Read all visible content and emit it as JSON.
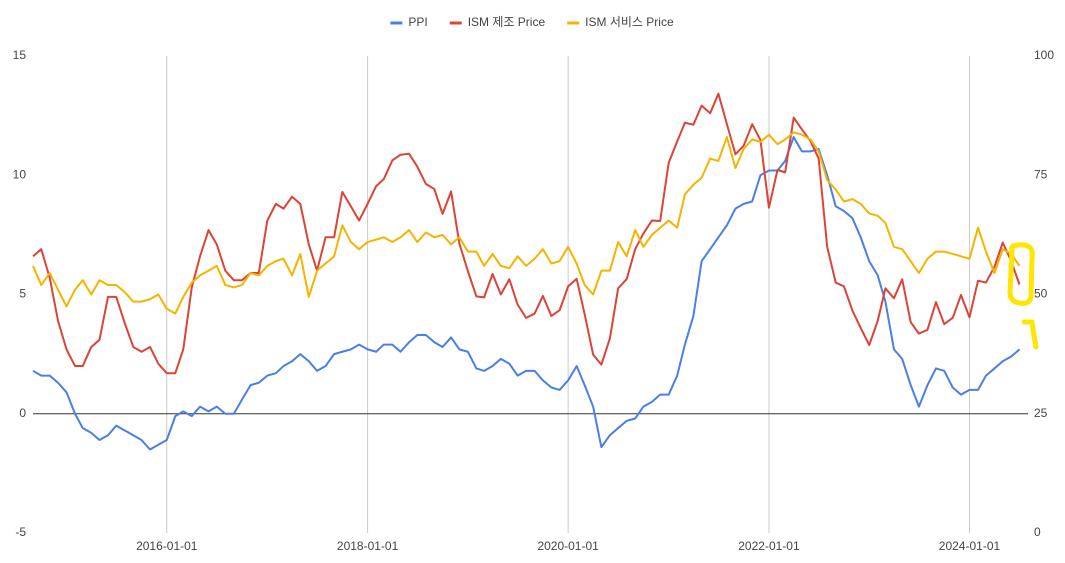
{
  "chart_data": {
    "type": "line",
    "x": [
      "2014-09-01",
      "2014-10-01",
      "2014-11-01",
      "2014-12-01",
      "2015-01-01",
      "2015-02-01",
      "2015-03-01",
      "2015-04-01",
      "2015-05-01",
      "2015-06-01",
      "2015-07-01",
      "2015-08-01",
      "2015-09-01",
      "2015-10-01",
      "2015-11-01",
      "2015-12-01",
      "2016-01-01",
      "2016-02-01",
      "2016-03-01",
      "2016-04-01",
      "2016-05-01",
      "2016-06-01",
      "2016-07-01",
      "2016-08-01",
      "2016-09-01",
      "2016-10-01",
      "2016-11-01",
      "2016-12-01",
      "2017-01-01",
      "2017-02-01",
      "2017-03-01",
      "2017-04-01",
      "2017-05-01",
      "2017-06-01",
      "2017-07-01",
      "2017-08-01",
      "2017-09-01",
      "2017-10-01",
      "2017-11-01",
      "2017-12-01",
      "2018-01-01",
      "2018-02-01",
      "2018-03-01",
      "2018-04-01",
      "2018-05-01",
      "2018-06-01",
      "2018-07-01",
      "2018-08-01",
      "2018-09-01",
      "2018-10-01",
      "2018-11-01",
      "2018-12-01",
      "2019-01-01",
      "2019-02-01",
      "2019-03-01",
      "2019-04-01",
      "2019-05-01",
      "2019-06-01",
      "2019-07-01",
      "2019-08-01",
      "2019-09-01",
      "2019-10-01",
      "2019-11-01",
      "2019-12-01",
      "2020-01-01",
      "2020-02-01",
      "2020-03-01",
      "2020-04-01",
      "2020-05-01",
      "2020-06-01",
      "2020-07-01",
      "2020-08-01",
      "2020-09-01",
      "2020-10-01",
      "2020-11-01",
      "2020-12-01",
      "2021-01-01",
      "2021-02-01",
      "2021-03-01",
      "2021-04-01",
      "2021-05-01",
      "2021-06-01",
      "2021-07-01",
      "2021-08-01",
      "2021-09-01",
      "2021-10-01",
      "2021-11-01",
      "2021-12-01",
      "2022-01-01",
      "2022-02-01",
      "2022-03-01",
      "2022-04-01",
      "2022-05-01",
      "2022-06-01",
      "2022-07-01",
      "2022-08-01",
      "2022-09-01",
      "2022-10-01",
      "2022-11-01",
      "2022-12-01",
      "2023-01-01",
      "2023-02-01",
      "2023-03-01",
      "2023-04-01",
      "2023-05-01",
      "2023-06-01",
      "2023-07-01",
      "2023-08-01",
      "2023-09-01",
      "2023-10-01",
      "2023-11-01",
      "2023-12-01",
      "2024-01-01",
      "2024-02-01",
      "2024-03-01",
      "2024-04-01",
      "2024-05-01",
      "2024-06-01",
      "2024-07-01"
    ],
    "series": [
      {
        "name": "PPI",
        "color": "#4a7fe6",
        "values": [
          1.8,
          1.6,
          1.6,
          1.3,
          0.9,
          0.0,
          -0.6,
          -0.8,
          -1.1,
          -0.9,
          -0.5,
          -0.7,
          -0.9,
          -1.1,
          -1.5,
          -1.3,
          -1.1,
          -0.1,
          0.1,
          -0.1,
          0.3,
          0.1,
          0.3,
          0.0,
          0.0,
          0.6,
          1.2,
          1.3,
          1.6,
          1.7,
          2.0,
          2.2,
          2.5,
          2.2,
          1.8,
          2.0,
          2.5,
          2.6,
          2.7,
          2.9,
          2.7,
          2.6,
          2.9,
          2.9,
          2.6,
          3.0,
          3.3,
          3.3,
          3.0,
          2.8,
          3.2,
          2.7,
          2.6,
          1.9,
          1.8,
          2.0,
          2.3,
          2.1,
          1.6,
          1.8,
          1.8,
          1.4,
          1.1,
          1.0,
          1.4,
          2.0,
          1.2,
          0.3,
          -1.4,
          -0.9,
          -0.6,
          -0.3,
          -0.2,
          0.3,
          0.5,
          0.8,
          0.8,
          1.6,
          2.9,
          4.1,
          6.4,
          6.9,
          7.4,
          7.9,
          8.6,
          8.8,
          8.9,
          10.0,
          10.2,
          10.2,
          10.6,
          11.6,
          11.0,
          11.0,
          11.1,
          10.0,
          8.7,
          8.5,
          8.2,
          7.4,
          6.4,
          5.8,
          4.7,
          2.7,
          2.3,
          1.2,
          0.3,
          1.2,
          1.9,
          1.8,
          1.1,
          0.8,
          1.0,
          1.0,
          1.6,
          1.9,
          2.2,
          2.4,
          2.7
        ]
      },
      {
        "name": "ISM 제조 Price",
        "color": "#db4437",
        "axis": "y2",
        "values": [
          58.0,
          59.5,
          53.5,
          44.5,
          38.5,
          35,
          35,
          39,
          40.5,
          49.5,
          49.5,
          44,
          39,
          38,
          39,
          35.5,
          33.5,
          33.5,
          38.5,
          51.5,
          58,
          63.5,
          60.5,
          55,
          53,
          53,
          54.5,
          54.5,
          65.5,
          69,
          68,
          70.5,
          69,
          60.5,
          55,
          62,
          62,
          71.5,
          68.5,
          65.5,
          69,
          72.7,
          74.2,
          78.1,
          79.3,
          79.5,
          76.8,
          73.2,
          72.1,
          66.9,
          71.6,
          60.7,
          54.9,
          49.6,
          49.4,
          54.3,
          50,
          53.2,
          47.9,
          45.1,
          46,
          49.7,
          45.5,
          46.7,
          51.7,
          53.3,
          45.9,
          37.4,
          35.3,
          40.8,
          51.3,
          53.2,
          59.5,
          62.8,
          65.5,
          65.4,
          77.6,
          82.1,
          86,
          85.6,
          89.6,
          88,
          92.1,
          85.7,
          79.4,
          81.2,
          85.7,
          82.4,
          68.2,
          76.1,
          75.6,
          87.1,
          84.6,
          82.2,
          78.5,
          60,
          52.5,
          51.7,
          46.6,
          43,
          39.4,
          44.5,
          51.3,
          49.2,
          53.2,
          44.2,
          41.8,
          42.6,
          48.4,
          43.8,
          45.1,
          49.9,
          45.2,
          52.9,
          52.5,
          55.8,
          60.9,
          57,
          52.1
        ]
      },
      {
        "name": "ISM 서비스 Price",
        "color": "#f4b400",
        "axis": "y2",
        "values": [
          56,
          52,
          54.5,
          51,
          47.5,
          51,
          53,
          50,
          53,
          52,
          52,
          50.5,
          48.5,
          48.5,
          49,
          50,
          47,
          46,
          49.5,
          52.5,
          54,
          55,
          56,
          52,
          51.5,
          52,
          54.5,
          54,
          56,
          57,
          57.5,
          54,
          58.5,
          49.5,
          55,
          56.5,
          58,
          64.5,
          61,
          59.5,
          61,
          61.5,
          62,
          61,
          62,
          63.5,
          61,
          63,
          62,
          62.5,
          60.5,
          62,
          59,
          59,
          56,
          58.5,
          56,
          55.5,
          58,
          56,
          57.5,
          59.5,
          56.5,
          57,
          60,
          56.5,
          52,
          50,
          55,
          55,
          61,
          58,
          63.5,
          60,
          62.5,
          64,
          65.5,
          64,
          71,
          73,
          74.5,
          78.5,
          78,
          83,
          76.5,
          80.5,
          82.5,
          82,
          83.5,
          81.5,
          82.5,
          84,
          83.5,
          82.5,
          80,
          74,
          72,
          69.5,
          70,
          69,
          67,
          66.5,
          65,
          60,
          59.5,
          57,
          54.5,
          57.5,
          59,
          59,
          58.5,
          58,
          57.5,
          64,
          59,
          54.5,
          59.5,
          58.5,
          56
        ]
      }
    ],
    "xlim": [
      "2014-09-01",
      "2024-08-01"
    ],
    "xticks": [
      "2016-01-01",
      "2018-01-01",
      "2020-01-01",
      "2022-01-01",
      "2024-01-01"
    ],
    "ylim": [
      -5,
      15
    ],
    "yticks": [
      -5,
      0,
      5,
      10,
      15
    ],
    "y2lim": [
      0,
      100
    ],
    "y2ticks": [
      0,
      25,
      50,
      75,
      100
    ],
    "grid": "x",
    "legend": "top"
  }
}
